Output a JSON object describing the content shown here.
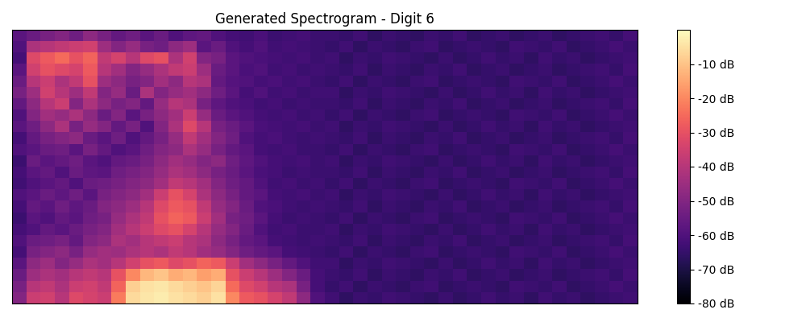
{
  "chart_data": {
    "type": "heatmap",
    "title": "Generated Spectrogram - Digit 6",
    "color": "magma",
    "tick_labels": false,
    "color_range": [
      -80,
      0
    ],
    "color_ticks": [
      {
        "value": -10,
        "label": "-10 dB"
      },
      {
        "value": -20,
        "label": "-20 dB"
      },
      {
        "value": -30,
        "label": "-30 dB"
      },
      {
        "value": -40,
        "label": "-40 dB"
      },
      {
        "value": -50,
        "label": "-50 dB"
      },
      {
        "value": -60,
        "label": "-60 dB"
      },
      {
        "value": -70,
        "label": "-70 dB"
      },
      {
        "value": -80,
        "label": "-80 dB"
      }
    ],
    "cells": [
      [
        -58,
        -55,
        -52,
        -50,
        -54,
        -48,
        -52,
        -56,
        -54,
        -58,
        -55,
        -60,
        -57,
        -56,
        -60,
        -62,
        -63,
        -61,
        -64,
        -63,
        -62,
        -64,
        -64,
        -65,
        -63,
        -66,
        -64,
        -65,
        -66,
        -64,
        -65,
        -63,
        -66,
        -65,
        -64,
        -66,
        -65,
        -64,
        -66,
        -65,
        -64,
        -63,
        -65,
        -62
      ],
      [
        -60,
        -42,
        -40,
        -38,
        -36,
        -35,
        -45,
        -50,
        -46,
        -52,
        -54,
        -48,
        -45,
        -58,
        -55,
        -60,
        -62,
        -60,
        -63,
        -62,
        -63,
        -64,
        -65,
        -63,
        -66,
        -64,
        -65,
        -66,
        -64,
        -63,
        -66,
        -65,
        -64,
        -65,
        -66,
        -63,
        -64,
        -65,
        -63,
        -66,
        -65,
        -64,
        -62,
        -64
      ],
      [
        -62,
        -32,
        -28,
        -25,
        -30,
        -26,
        -38,
        -34,
        -40,
        -32,
        -30,
        -42,
        -35,
        -50,
        -52,
        -58,
        -60,
        -61,
        -62,
        -63,
        -62,
        -64,
        -63,
        -66,
        -64,
        -65,
        -63,
        -64,
        -65,
        -66,
        -64,
        -66,
        -65,
        -63,
        -65,
        -64,
        -66,
        -63,
        -65,
        -64,
        -66,
        -65,
        -64,
        -63
      ],
      [
        -58,
        -35,
        -30,
        -32,
        -34,
        -28,
        -40,
        -44,
        -50,
        -46,
        -42,
        -38,
        -36,
        -45,
        -55,
        -58,
        -61,
        -60,
        -63,
        -62,
        -64,
        -63,
        -64,
        -65,
        -63,
        -66,
        -64,
        -65,
        -66,
        -64,
        -65,
        -63,
        -66,
        -65,
        -64,
        -66,
        -65,
        -64,
        -66,
        -65,
        -64,
        -63,
        -65,
        -62
      ],
      [
        -55,
        -40,
        -36,
        -42,
        -38,
        -30,
        -45,
        -48,
        -52,
        -50,
        -44,
        -48,
        -40,
        -42,
        -56,
        -59,
        -60,
        -62,
        -61,
        -63,
        -62,
        -64,
        -65,
        -63,
        -66,
        -64,
        -65,
        -66,
        -64,
        -63,
        -66,
        -65,
        -64,
        -65,
        -66,
        -63,
        -64,
        -65,
        -63,
        -66,
        -65,
        -64,
        -62,
        -64
      ],
      [
        -52,
        -45,
        -35,
        -40,
        -45,
        -38,
        -50,
        -46,
        -55,
        -42,
        -50,
        -46,
        -44,
        -48,
        -54,
        -58,
        -62,
        -60,
        -63,
        -62,
        -64,
        -63,
        -63,
        -66,
        -64,
        -65,
        -63,
        -64,
        -65,
        -66,
        -64,
        -66,
        -65,
        -63,
        -65,
        -64,
        -66,
        -63,
        -65,
        -64,
        -66,
        -65,
        -64,
        -63
      ],
      [
        -56,
        -48,
        -40,
        -36,
        -50,
        -42,
        -48,
        -52,
        -50,
        -56,
        -46,
        -40,
        -42,
        -52,
        -57,
        -60,
        -61,
        -63,
        -62,
        -64,
        -63,
        -64,
        -64,
        -65,
        -63,
        -66,
        -64,
        -65,
        -66,
        -64,
        -65,
        -63,
        -66,
        -65,
        -64,
        -66,
        -65,
        -64,
        -66,
        -65,
        -64,
        -63,
        -65,
        -62
      ],
      [
        -60,
        -50,
        -44,
        -46,
        -42,
        -48,
        -55,
        -50,
        -58,
        -52,
        -48,
        -44,
        -36,
        -46,
        -55,
        -58,
        -60,
        -62,
        -63,
        -62,
        -64,
        -63,
        -65,
        -63,
        -66,
        -64,
        -65,
        -66,
        -64,
        -63,
        -66,
        -65,
        -64,
        -65,
        -66,
        -63,
        -64,
        -65,
        -63,
        -66,
        -65,
        -64,
        -62,
        -64
      ],
      [
        -58,
        -54,
        -48,
        -42,
        -52,
        -46,
        -50,
        -56,
        -52,
        -60,
        -50,
        -42,
        -32,
        -40,
        -52,
        -55,
        -58,
        -61,
        -62,
        -63,
        -62,
        -64,
        -63,
        -66,
        -64,
        -65,
        -63,
        -64,
        -65,
        -66,
        -64,
        -66,
        -65,
        -63,
        -65,
        -64,
        -66,
        -63,
        -65,
        -64,
        -66,
        -65,
        -64,
        -63
      ],
      [
        -62,
        -56,
        -52,
        -50,
        -48,
        -55,
        -58,
        -54,
        -60,
        -56,
        -52,
        -46,
        -38,
        -44,
        -50,
        -54,
        -60,
        -62,
        -61,
        -63,
        -64,
        -63,
        -64,
        -65,
        -63,
        -66,
        -64,
        -65,
        -66,
        -64,
        -65,
        -63,
        -66,
        -65,
        -64,
        -66,
        -65,
        -64,
        -66,
        -65,
        -64,
        -63,
        -65,
        -62
      ],
      [
        -60,
        -58,
        -55,
        -54,
        -58,
        -52,
        -56,
        -60,
        -58,
        -54,
        -50,
        -48,
        -42,
        -46,
        -52,
        -56,
        -58,
        -62,
        -63,
        -62,
        -64,
        -64,
        -65,
        -63,
        -66,
        -64,
        -65,
        -66,
        -64,
        -63,
        -66,
        -65,
        -64,
        -65,
        -66,
        -63,
        -64,
        -65,
        -63,
        -66,
        -65,
        -64,
        -62,
        -64
      ],
      [
        -64,
        -55,
        -58,
        -56,
        -54,
        -58,
        -60,
        -56,
        -55,
        -52,
        -48,
        -44,
        -46,
        -50,
        -48,
        -54,
        -57,
        -60,
        -62,
        -63,
        -62,
        -64,
        -63,
        -66,
        -64,
        -65,
        -63,
        -64,
        -65,
        -66,
        -64,
        -66,
        -65,
        -63,
        -65,
        -64,
        -66,
        -63,
        -65,
        -64,
        -66,
        -65,
        -64,
        -63
      ],
      [
        -62,
        -58,
        -56,
        -60,
        -55,
        -57,
        -58,
        -54,
        -52,
        -50,
        -46,
        -42,
        -44,
        -48,
        -52,
        -55,
        -58,
        -61,
        -62,
        -64,
        -63,
        -64,
        -64,
        -65,
        -63,
        -66,
        -64,
        -65,
        -66,
        -64,
        -65,
        -63,
        -66,
        -65,
        -64,
        -66,
        -65,
        -64,
        -66,
        -65,
        -64,
        -63,
        -65,
        -62
      ],
      [
        -63,
        -60,
        -58,
        -56,
        -60,
        -55,
        -54,
        -52,
        -50,
        -48,
        -44,
        -38,
        -40,
        -44,
        -50,
        -54,
        -56,
        -60,
        -63,
        -62,
        -64,
        -63,
        -65,
        -63,
        -66,
        -64,
        -65,
        -66,
        -64,
        -63,
        -66,
        -65,
        -64,
        -65,
        -66,
        -63,
        -64,
        -65,
        -63,
        -66,
        -65,
        -64,
        -62,
        -64
      ],
      [
        -60,
        -58,
        -55,
        -57,
        -54,
        -58,
        -52,
        -50,
        -48,
        -44,
        -36,
        -30,
        -34,
        -42,
        -48,
        -52,
        -56,
        -58,
        -62,
        -63,
        -62,
        -64,
        -63,
        -66,
        -64,
        -65,
        -63,
        -64,
        -65,
        -66,
        -64,
        -66,
        -65,
        -63,
        -65,
        -64,
        -66,
        -63,
        -65,
        -64,
        -66,
        -65,
        -64,
        -63
      ],
      [
        -62,
        -56,
        -58,
        -54,
        -57,
        -55,
        -50,
        -48,
        -45,
        -40,
        -32,
        -28,
        -30,
        -38,
        -46,
        -50,
        -55,
        -60,
        -61,
        -63,
        -64,
        -63,
        -64,
        -65,
        -63,
        -66,
        -64,
        -65,
        -66,
        -64,
        -65,
        -63,
        -66,
        -65,
        -64,
        -66,
        -65,
        -64,
        -66,
        -65,
        -64,
        -63,
        -65,
        -62
      ],
      [
        -64,
        -58,
        -60,
        -56,
        -58,
        -54,
        -52,
        -46,
        -42,
        -38,
        -30,
        -26,
        -28,
        -36,
        -44,
        -52,
        -54,
        -58,
        -62,
        -64,
        -63,
        -64,
        -65,
        -63,
        -66,
        -64,
        -65,
        -66,
        -64,
        -63,
        -66,
        -65,
        -64,
        -65,
        -66,
        -63,
        -64,
        -65,
        -63,
        -66,
        -65,
        -64,
        -62,
        -64
      ],
      [
        -62,
        -60,
        -56,
        -58,
        -55,
        -52,
        -50,
        -44,
        -40,
        -36,
        -32,
        -30,
        -34,
        -40,
        -46,
        -50,
        -55,
        -60,
        -63,
        -62,
        -64,
        -64,
        -63,
        -66,
        -64,
        -65,
        -63,
        -64,
        -65,
        -66,
        -64,
        -66,
        -65,
        -63,
        -65,
        -64,
        -66,
        -63,
        -65,
        -64,
        -66,
        -65,
        -64,
        -63
      ],
      [
        -60,
        -55,
        -54,
        -52,
        -56,
        -50,
        -48,
        -42,
        -44,
        -40,
        -38,
        -36,
        -40,
        -42,
        -48,
        -52,
        -56,
        -58,
        -62,
        -63,
        -64,
        -63,
        -64,
        -65,
        -63,
        -66,
        -64,
        -65,
        -66,
        -64,
        -65,
        -63,
        -66,
        -65,
        -64,
        -66,
        -65,
        -64,
        -66,
        -65,
        -64,
        -63,
        -65,
        -62
      ],
      [
        -62,
        -52,
        -50,
        -48,
        -52,
        -46,
        -44,
        -45,
        -42,
        -40,
        -42,
        -38,
        -40,
        -44,
        -46,
        -50,
        -54,
        -56,
        -58,
        -62,
        -63,
        -64,
        -65,
        -63,
        -66,
        -64,
        -65,
        -66,
        -64,
        -63,
        -66,
        -65,
        -64,
        -65,
        -66,
        -63,
        -64,
        -65,
        -63,
        -66,
        -65,
        -64,
        -62,
        -64
      ],
      [
        -58,
        -48,
        -45,
        -50,
        -46,
        -42,
        -44,
        -40,
        -35,
        -30,
        -28,
        -32,
        -30,
        -26,
        -28,
        -36,
        -44,
        -48,
        -52,
        -56,
        -60,
        -63,
        -63,
        -66,
        -64,
        -65,
        -63,
        -64,
        -65,
        -66,
        -64,
        -66,
        -65,
        -63,
        -65,
        -64,
        -66,
        -63,
        -65,
        -64,
        -66,
        -65,
        -64,
        -63
      ],
      [
        -55,
        -45,
        -42,
        -44,
        -40,
        -38,
        -40,
        -30,
        -20,
        -12,
        -10,
        -14,
        -12,
        -16,
        -14,
        -30,
        -36,
        -40,
        -45,
        -50,
        -55,
        -62,
        -64,
        -65,
        -63,
        -66,
        -64,
        -65,
        -66,
        -64,
        -65,
        -63,
        -66,
        -65,
        -64,
        -66,
        -65,
        -64,
        -66,
        -65,
        -64,
        -63,
        -65,
        -62
      ],
      [
        -52,
        -40,
        -38,
        -42,
        -36,
        -35,
        -38,
        -26,
        -8,
        -5,
        -4,
        -6,
        -8,
        -10,
        -7,
        -25,
        -32,
        -35,
        -40,
        -42,
        -52,
        -62,
        -65,
        -63,
        -66,
        -64,
        -65,
        -66,
        -64,
        -63,
        -66,
        -65,
        -64,
        -65,
        -66,
        -63,
        -64,
        -65,
        -63,
        -66,
        -65,
        -64,
        -62,
        -64
      ],
      [
        -50,
        -36,
        -35,
        -40,
        -32,
        -34,
        -36,
        -22,
        -6,
        -4,
        -3,
        -5,
        -6,
        -8,
        -5,
        -20,
        -28,
        -30,
        -34,
        -38,
        -48,
        -60,
        -63,
        -66,
        -64,
        -65,
        -63,
        -64,
        -65,
        -66,
        -64,
        -66,
        -65,
        -63,
        -65,
        -64,
        -66,
        -63,
        -65,
        -64,
        -66,
        -65,
        -64,
        -63
      ]
    ]
  }
}
